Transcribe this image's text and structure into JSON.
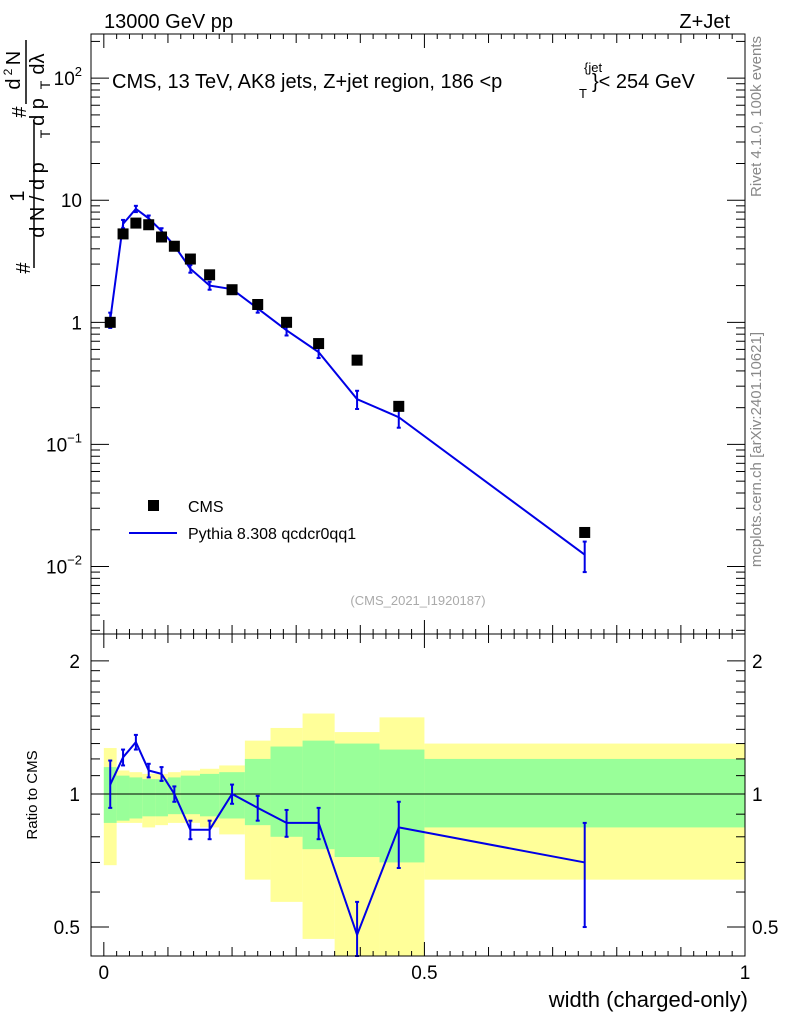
{
  "header": {
    "left": "13000 GeV pp",
    "right": "Z+Jet"
  },
  "side": {
    "rivet": "Rivet 4.1.0,  100k events",
    "mcplots": "mcplots.cern.ch [arXiv:2401.10621]"
  },
  "analysis_id": "(CMS_2021_I1920187)",
  "colors": {
    "data": "#000000",
    "mc": "#0000e6",
    "band_inner": "#99ff99",
    "band_outer": "#ffff99"
  },
  "chart_data": [
    {
      "type": "scatter",
      "panel": "main",
      "title": "CMS, 13 TeV, AK8 jets, Z+jet region, 186 <p",
      "title_sup": "{jet",
      "title_sub": "T",
      "title_suffix": "}< 254 GeV",
      "ylabel_parts": {
        "one": "1",
        "num": "#",
        "dN": "d N / d p",
        "dN_sub": "T",
        "hash2": "#",
        "d2N": "d",
        "sup2": "2",
        "N2": "N",
        "dpT": "d p",
        "dpT_sub": "T",
        "dl": "dλ"
      },
      "yscale": "log",
      "ylim": [
        0.0028,
        230
      ],
      "yticks": [
        {
          "value": 0.01,
          "base": "10",
          "exp": "−2"
        },
        {
          "value": 0.1,
          "base": "10",
          "exp": "−1"
        },
        {
          "value": 1,
          "label": "1"
        },
        {
          "value": 10,
          "label": "10"
        },
        {
          "value": 100,
          "base": "10",
          "exp": "2"
        }
      ],
      "xlim": [
        -0.02,
        1.0
      ],
      "legend": [
        {
          "name": "CMS",
          "marker": "square"
        },
        {
          "name": "Pythia 8.308 qcdcr0qq1",
          "marker": "line"
        }
      ],
      "series": [
        {
          "name": "CMS",
          "x": [
            0.01,
            0.03,
            0.05,
            0.07,
            0.09,
            0.11,
            0.135,
            0.165,
            0.2,
            0.24,
            0.285,
            0.335,
            0.395,
            0.46,
            0.75
          ],
          "values": [
            1.0,
            5.3,
            6.5,
            6.3,
            5.0,
            4.2,
            3.3,
            2.45,
            1.85,
            1.4,
            1.0,
            0.67,
            0.49,
            0.205,
            0.019
          ]
        },
        {
          "name": "Pythia 8.308 qcdcr0qq1",
          "x": [
            0.01,
            0.03,
            0.05,
            0.07,
            0.09,
            0.11,
            0.135,
            0.165,
            0.2,
            0.24,
            0.285,
            0.335,
            0.395,
            0.46,
            0.75
          ],
          "values": [
            1.05,
            6.4,
            8.5,
            7.1,
            5.6,
            4.25,
            2.75,
            2.0,
            1.87,
            1.3,
            0.86,
            0.57,
            0.235,
            0.167,
            0.0125
          ],
          "err": [
            0.15,
            0.5,
            0.5,
            0.4,
            0.3,
            0.25,
            0.2,
            0.15,
            0.12,
            0.1,
            0.08,
            0.06,
            0.04,
            0.03,
            0.0035
          ]
        }
      ]
    },
    {
      "type": "line",
      "panel": "ratio",
      "ylabel": "Ratio to CMS",
      "xlabel": "width (charged-only)",
      "yscale": "log",
      "ylim": [
        0.43,
        2.3
      ],
      "yticks": [
        {
          "value": 0.5,
          "label": "0.5"
        },
        {
          "value": 1,
          "label": "1"
        },
        {
          "value": 2,
          "label": "2"
        }
      ],
      "xlim": [
        -0.02,
        1.0
      ],
      "xticks": [
        {
          "value": 0,
          "label": "0"
        },
        {
          "value": 0.5,
          "label": "0.5"
        },
        {
          "value": 1,
          "label": "1"
        }
      ],
      "bands": {
        "edges": [
          0,
          0.02,
          0.04,
          0.06,
          0.08,
          0.1,
          0.12,
          0.15,
          0.18,
          0.22,
          0.26,
          0.31,
          0.36,
          0.43,
          0.5,
          1.0
        ],
        "inner_lo": [
          0.86,
          0.87,
          0.88,
          0.89,
          0.89,
          0.9,
          0.9,
          0.89,
          0.88,
          0.85,
          0.8,
          0.75,
          0.72,
          0.7,
          0.84
        ],
        "inner_hi": [
          1.15,
          1.1,
          1.09,
          1.08,
          1.08,
          1.09,
          1.1,
          1.11,
          1.12,
          1.2,
          1.28,
          1.32,
          1.3,
          1.26,
          1.2
        ],
        "outer_lo": [
          0.69,
          0.86,
          0.86,
          0.84,
          0.85,
          0.86,
          0.86,
          0.84,
          0.81,
          0.64,
          0.57,
          0.47,
          0.41,
          0.41,
          0.64
        ],
        "outer_hi": [
          1.27,
          1.13,
          1.12,
          1.11,
          1.11,
          1.12,
          1.13,
          1.14,
          1.16,
          1.32,
          1.41,
          1.52,
          1.38,
          1.49,
          1.3
        ]
      },
      "series": [
        {
          "name": "Pythia 8.308 qcdcr0qq1",
          "x": [
            0.01,
            0.03,
            0.05,
            0.07,
            0.09,
            0.11,
            0.135,
            0.165,
            0.2,
            0.24,
            0.285,
            0.335,
            0.395,
            0.46,
            0.75
          ],
          "values": [
            1.05,
            1.21,
            1.31,
            1.13,
            1.11,
            1.0,
            0.83,
            0.83,
            1.0,
            0.93,
            0.86,
            0.86,
            0.48,
            0.84,
            0.7
          ],
          "err_lo": [
            0.12,
            0.05,
            0.05,
            0.04,
            0.04,
            0.04,
            0.04,
            0.04,
            0.05,
            0.06,
            0.06,
            0.07,
            0.07,
            0.16,
            0.2
          ],
          "err_hi": [
            0.14,
            0.05,
            0.05,
            0.04,
            0.04,
            0.04,
            0.04,
            0.04,
            0.05,
            0.06,
            0.06,
            0.07,
            0.09,
            0.12,
            0.16
          ]
        }
      ]
    }
  ]
}
